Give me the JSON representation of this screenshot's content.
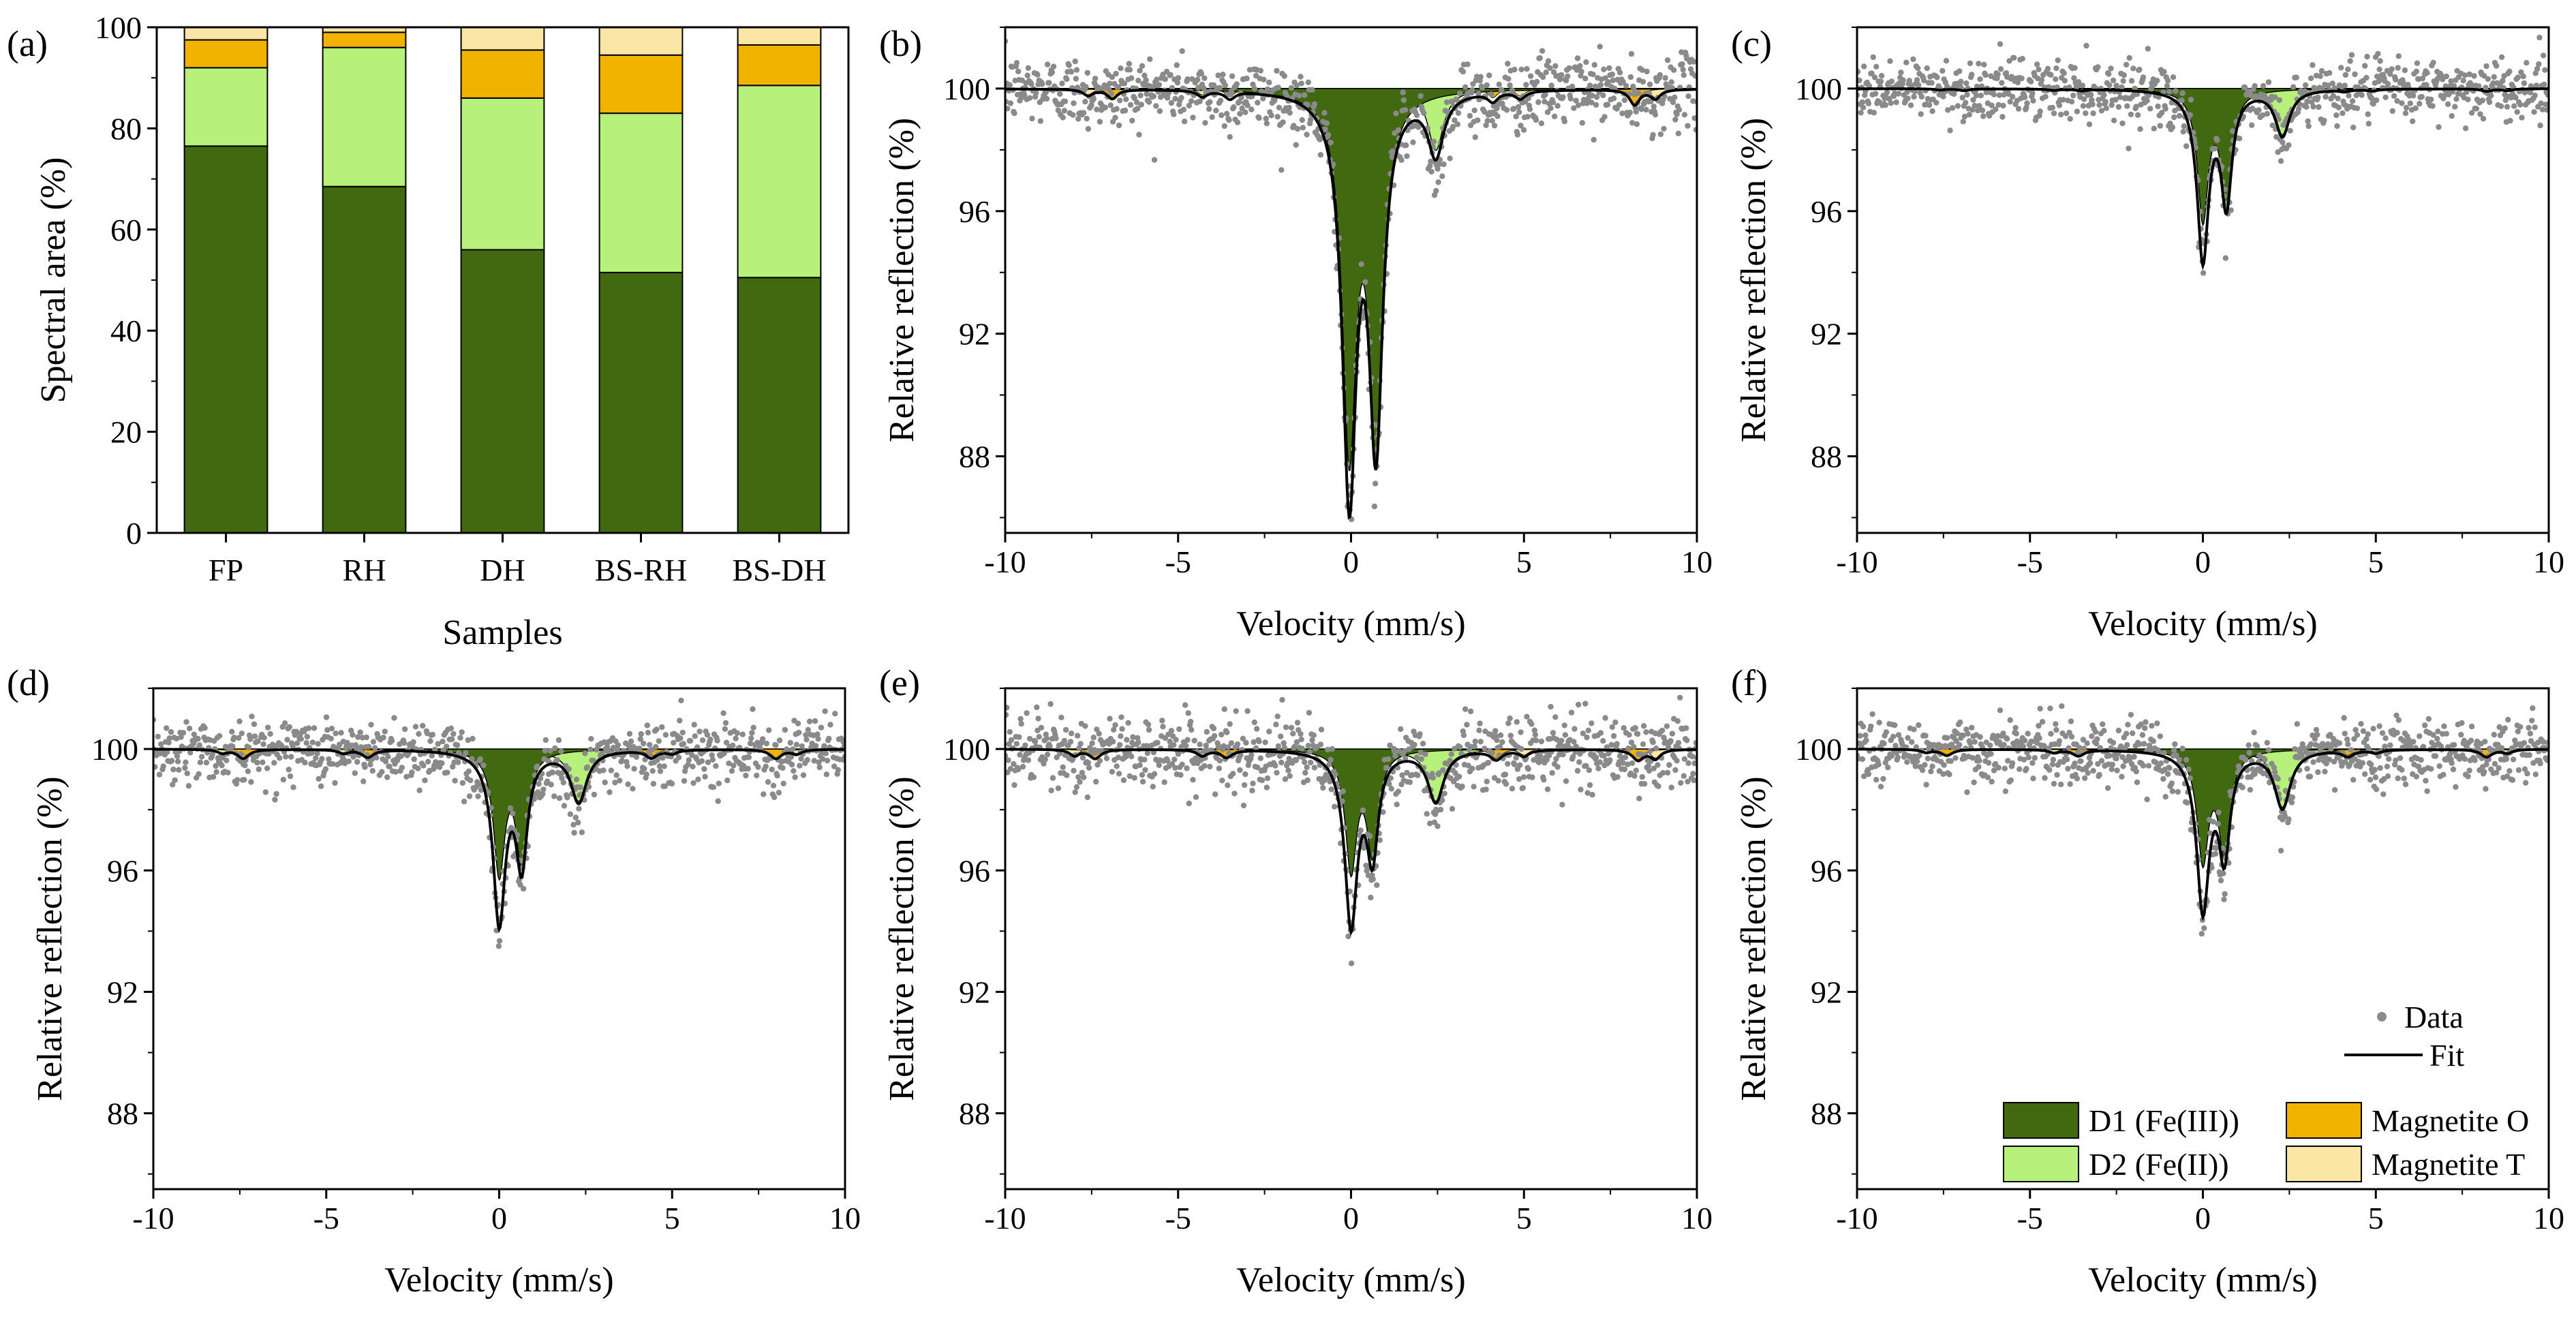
{
  "colors": {
    "D1": "#41690f",
    "D2": "#b7f07a",
    "magO": "#f2b200",
    "magT": "#fbe6a6",
    "data": "#8a8a8a",
    "fit": "#000000"
  },
  "chart_data": [
    {
      "type": "bar",
      "panel": "(a)",
      "stacked": true,
      "xlabel": "Samples",
      "ylabel": "Spectral area (%)",
      "ylim": [
        0,
        100
      ],
      "yticks": [
        "0",
        "20",
        "40",
        "60",
        "80",
        "100"
      ],
      "categories": [
        "FP",
        "RH",
        "DH",
        "BS-RH",
        "BS-DH"
      ],
      "series": [
        {
          "name": "D1 (Fe(III))",
          "key": "D1",
          "values": [
            76.5,
            68.5,
            56,
            51.5,
            50.5
          ]
        },
        {
          "name": "D2 (Fe(II))",
          "key": "D2",
          "values": [
            15.5,
            27.5,
            30,
            31.5,
            38
          ]
        },
        {
          "name": "Magnetite O",
          "key": "magO",
          "values": [
            5.5,
            3,
            9.5,
            11.5,
            8
          ]
        },
        {
          "name": "Magnetite T",
          "key": "magT",
          "values": [
            2.5,
            1,
            4.5,
            5.5,
            3.5
          ]
        }
      ]
    },
    {
      "type": "area",
      "panel": "(b)",
      "sample": "FP",
      "xlabel": "Velocity (mm/s)",
      "ylabel": "Relative reflection (%)",
      "xlim": [
        -10,
        10
      ],
      "ylim": [
        85.5,
        102
      ],
      "xticks": [
        "-10",
        "-5",
        "0",
        "5",
        "10"
      ],
      "yticks": [
        "88",
        "92",
        "96",
        "100"
      ],
      "D1": {
        "positions": [
          -0.05,
          0.72
        ],
        "depths": [
          11.5,
          11.2
        ],
        "width": 0.48
      },
      "D2": {
        "positions": [
          -0.05,
          2.45
        ],
        "depths": [
          1.5,
          2.0
        ],
        "width": 0.55
      },
      "magO": {
        "positions": [
          -6.9,
          -3.5,
          4.1,
          8.2
        ],
        "depths": [
          0.3,
          0.25,
          0.3,
          0.5
        ],
        "width": 0.35
      },
      "magT": {
        "positions": [
          -7.6,
          -4.3,
          4.9,
          8.8
        ],
        "depths": [
          0.2,
          0.2,
          0.25,
          0.3
        ],
        "width": 0.35
      },
      "noise": 0.75,
      "points": 900
    },
    {
      "type": "area",
      "panel": "(c)",
      "sample": "RH",
      "xlabel": "Velocity (mm/s)",
      "ylabel": "Relative reflection (%)",
      "xlim": [
        -10,
        10
      ],
      "ylim": [
        85.5,
        102
      ],
      "xticks": [
        "-10",
        "-5",
        "0",
        "5",
        "10"
      ],
      "yticks": [
        "88",
        "92",
        "96",
        "100"
      ],
      "D1": {
        "positions": [
          0.0,
          0.68
        ],
        "depths": [
          4.2,
          3.6
        ],
        "width": 0.38
      },
      "D2": {
        "positions": [
          0.0,
          2.3
        ],
        "depths": [
          1.3,
          1.5
        ],
        "width": 0.5
      },
      "magO": {
        "positions": [
          -6.9,
          -3.5,
          4.1,
          8.2
        ],
        "depths": [
          0.06,
          0.05,
          0.06,
          0.08
        ],
        "width": 0.35
      },
      "magT": {
        "positions": [
          -7.6,
          -4.3,
          4.9,
          8.8
        ],
        "depths": [
          0.04,
          0.04,
          0.05,
          0.06
        ],
        "width": 0.35
      },
      "noise": 0.65,
      "points": 900
    },
    {
      "type": "area",
      "panel": "(d)",
      "sample": "DH",
      "xlabel": "Velocity (mm/s)",
      "ylabel": "Relative reflection (%)",
      "xlim": [
        -10,
        10
      ],
      "ylim": [
        85.5,
        102
      ],
      "xticks": [
        "-10",
        "-5",
        "0",
        "5",
        "10"
      ],
      "yticks": [
        "88",
        "92",
        "96",
        "100"
      ],
      "D1": {
        "positions": [
          0.0,
          0.65
        ],
        "depths": [
          4.0,
          3.6
        ],
        "width": 0.4
      },
      "D2": {
        "positions": [
          0.0,
          2.3
        ],
        "depths": [
          1.6,
          1.7
        ],
        "width": 0.55
      },
      "magO": {
        "positions": [
          -7.4,
          -3.8,
          4.4,
          8.0
        ],
        "depths": [
          0.3,
          0.25,
          0.25,
          0.3
        ],
        "width": 0.4
      },
      "magT": {
        "positions": [
          -8.0,
          -4.5,
          5.0,
          8.6
        ],
        "depths": [
          0.12,
          0.12,
          0.12,
          0.15
        ],
        "width": 0.35
      },
      "noise": 0.7,
      "points": 900
    },
    {
      "type": "area",
      "panel": "(e)",
      "sample": "BS-RH",
      "xlabel": "Velocity (mm/s)",
      "ylabel": "Relative reflection (%)",
      "xlim": [
        -10,
        10
      ],
      "ylim": [
        85.5,
        102
      ],
      "xticks": [
        "-10",
        "-5",
        "0",
        "5",
        "10"
      ],
      "yticks": [
        "88",
        "92",
        "96",
        "100"
      ],
      "D1": {
        "positions": [
          0.0,
          0.62
        ],
        "depths": [
          3.9,
          3.3
        ],
        "width": 0.4
      },
      "D2": {
        "positions": [
          0.0,
          2.45
        ],
        "depths": [
          1.8,
          1.7
        ],
        "width": 0.55
      },
      "magO": {
        "positions": [
          -7.4,
          -3.6,
          4.2,
          8.3
        ],
        "depths": [
          0.3,
          0.25,
          0.3,
          0.35
        ],
        "width": 0.4
      },
      "magT": {
        "positions": [
          -8.0,
          -4.3,
          5.0,
          8.8
        ],
        "depths": [
          0.2,
          0.2,
          0.2,
          0.3
        ],
        "width": 0.35
      },
      "noise": 0.8,
      "points": 900
    },
    {
      "type": "area",
      "panel": "(f)",
      "sample": "BS-DH",
      "xlabel": "Velocity (mm/s)",
      "ylabel": "Relative reflection (%)",
      "xlim": [
        -10,
        10
      ],
      "ylim": [
        85.5,
        102
      ],
      "xticks": [
        "-10",
        "-5",
        "0",
        "5",
        "10"
      ],
      "yticks": [
        "88",
        "92",
        "96",
        "100"
      ],
      "D1": {
        "positions": [
          0.0,
          0.62
        ],
        "depths": [
          3.6,
          3.3
        ],
        "width": 0.4
      },
      "D2": {
        "positions": [
          0.0,
          2.3
        ],
        "depths": [
          1.6,
          1.9
        ],
        "width": 0.55
      },
      "magO": {
        "positions": [
          -7.4,
          -3.6,
          4.2,
          8.2
        ],
        "depths": [
          0.2,
          0.2,
          0.2,
          0.25
        ],
        "width": 0.4
      },
      "magT": {
        "positions": [
          -8.0,
          -4.3,
          5.0,
          8.8
        ],
        "depths": [
          0.1,
          0.1,
          0.1,
          0.12
        ],
        "width": 0.35
      },
      "noise": 0.7,
      "points": 900
    }
  ],
  "legend": {
    "data_label": "Data",
    "fit_label": "Fit",
    "d1_label": "D1 (Fe(III))",
    "d2_label": "D2 (Fe(II))",
    "magO_label": "Magnetite O",
    "magT_label": "Magnetite T"
  }
}
